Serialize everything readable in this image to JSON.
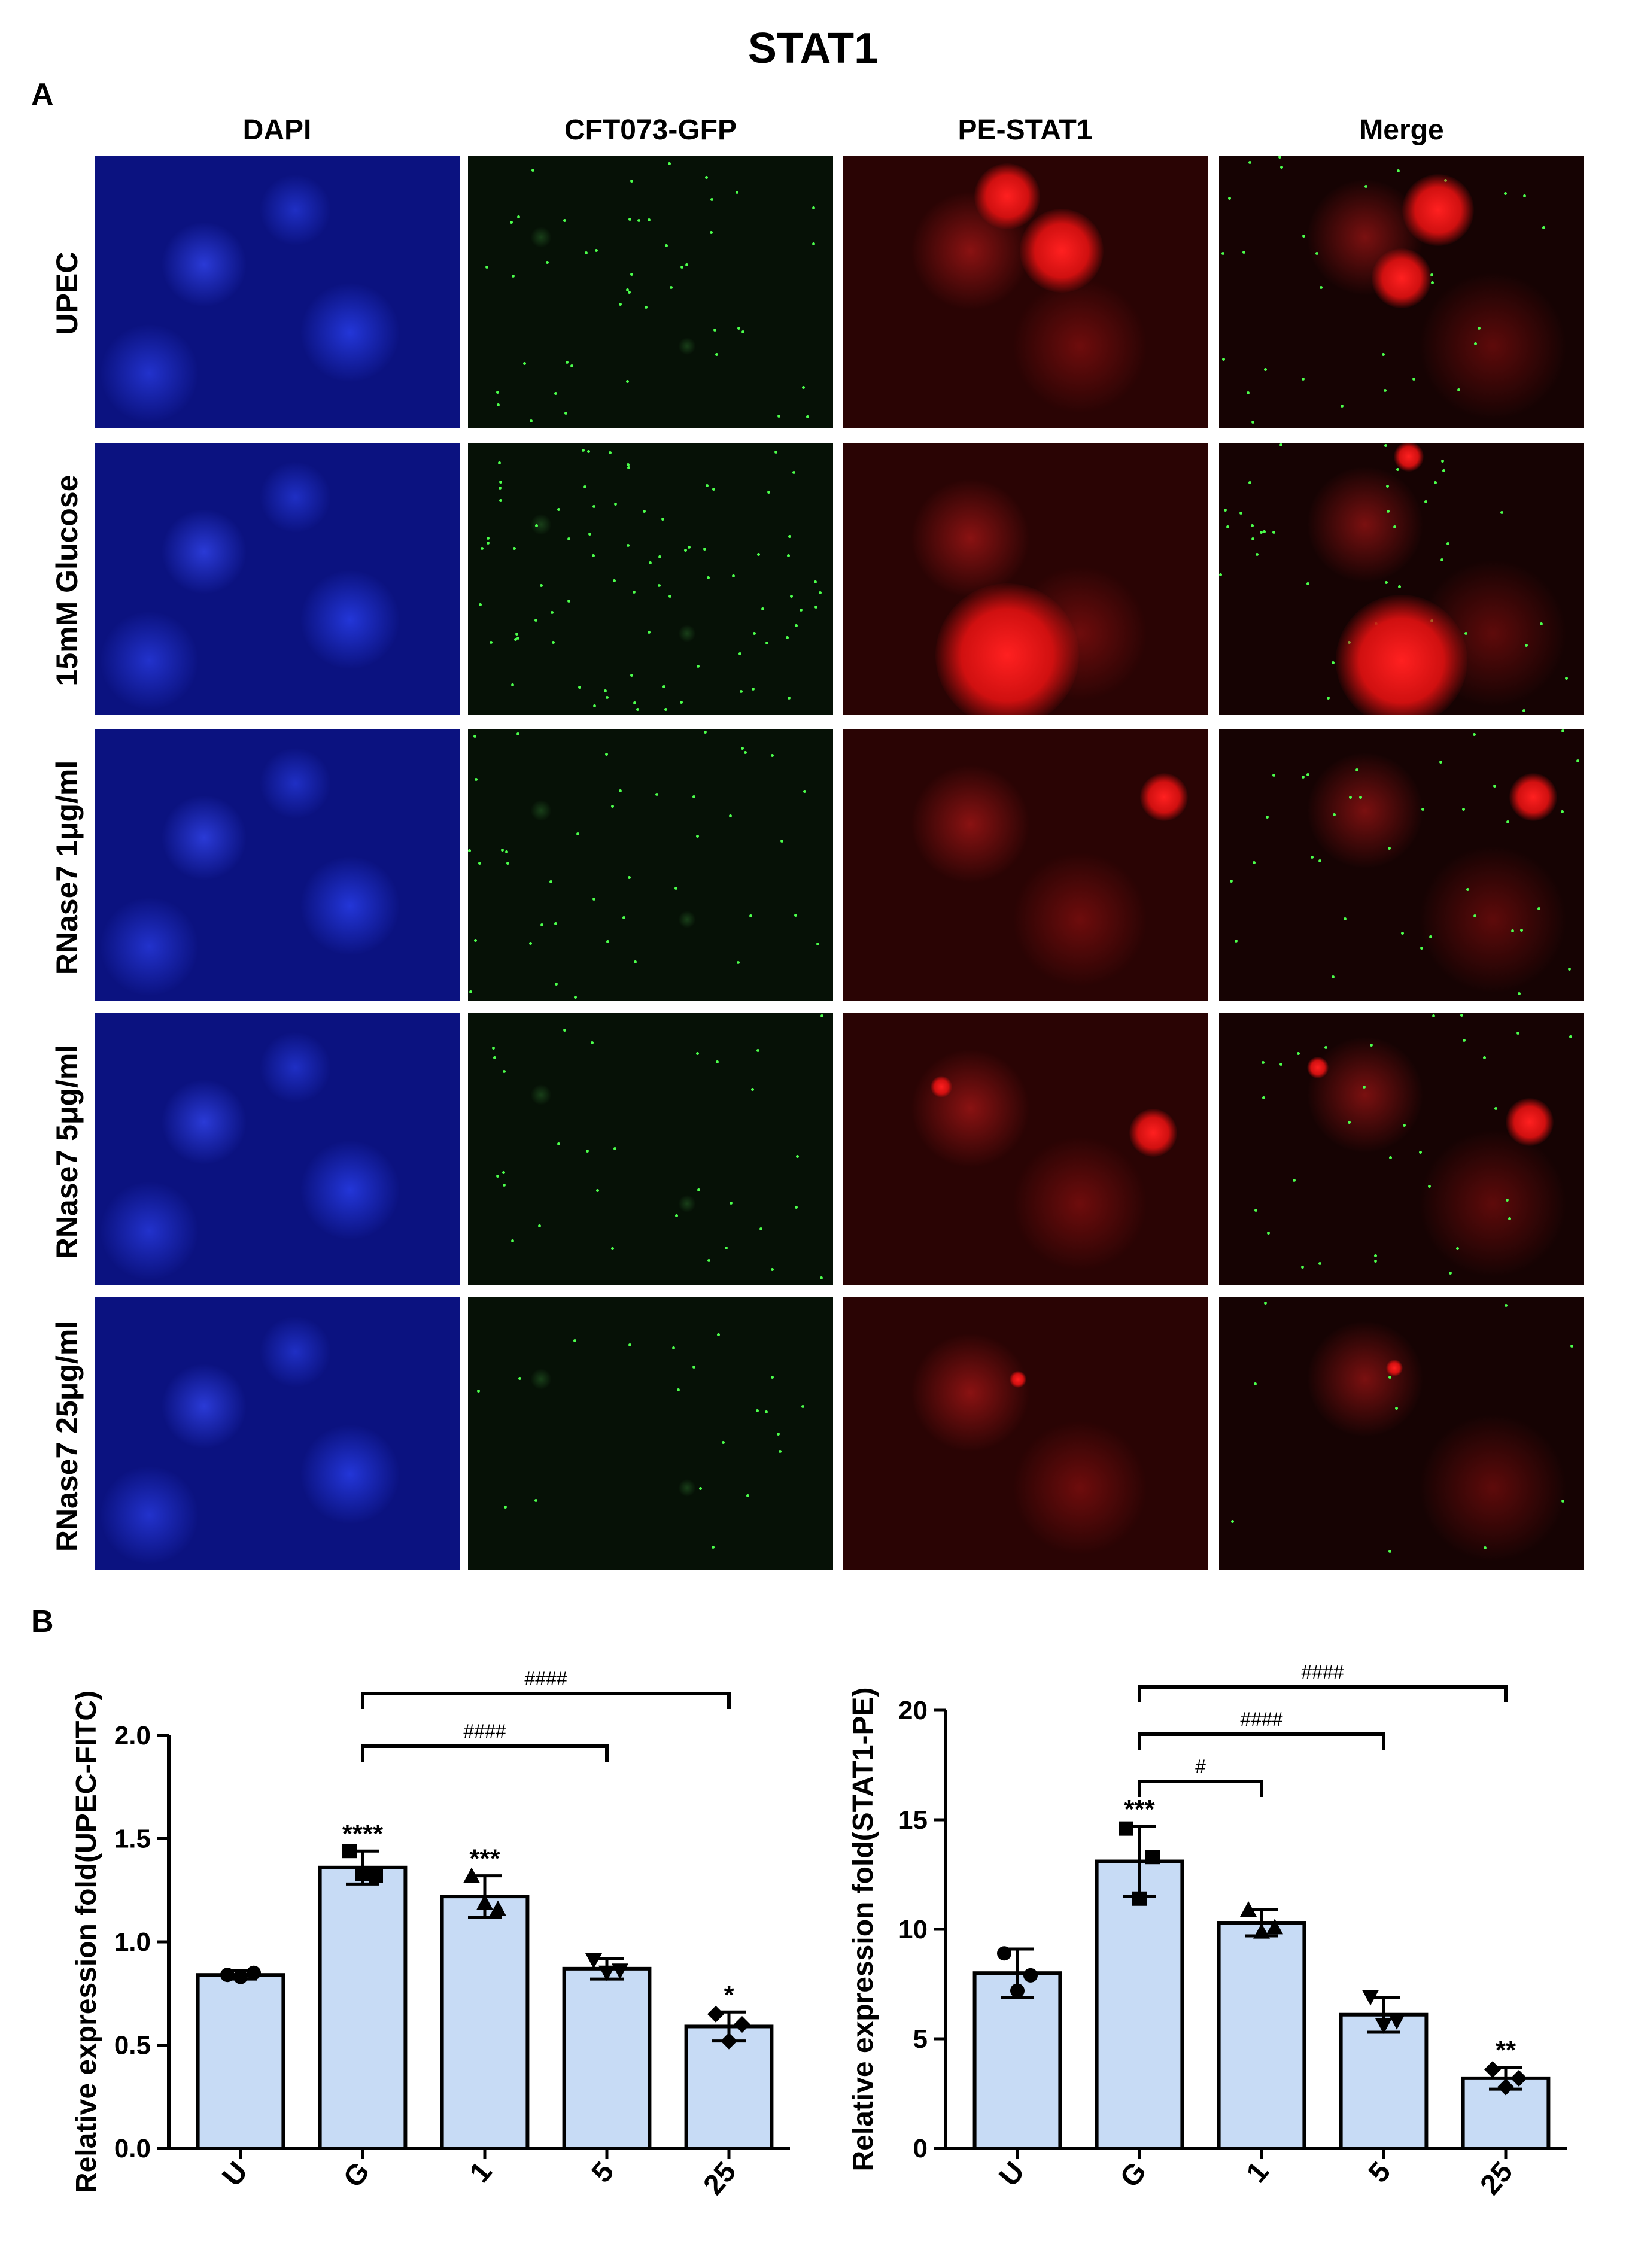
{
  "figure": {
    "title": "STAT1",
    "panel_a_label": "A",
    "panel_b_label": "B",
    "column_headers": [
      "DAPI",
      "CFT073-GFP",
      "PE-STAT1",
      "Merge"
    ],
    "row_labels": [
      "UPEC",
      "15mM Glucose",
      "RNase7 1μg/ml",
      "RNase7  5μg/ml",
      "RNase7 25μg/ml"
    ]
  },
  "chart_data": [
    {
      "type": "bar",
      "categories": [
        "U",
        "G",
        "1",
        "5",
        "25"
      ],
      "values": [
        0.84,
        1.36,
        1.22,
        0.87,
        0.59
      ],
      "errors": [
        0.02,
        0.08,
        0.1,
        0.05,
        0.07
      ],
      "points": [
        [
          0.84,
          0.83,
          0.85
        ],
        [
          1.44,
          1.33,
          1.32
        ],
        [
          1.32,
          1.19,
          1.16
        ],
        [
          0.91,
          0.85,
          0.86
        ],
        [
          0.65,
          0.52,
          0.6
        ]
      ],
      "ylabel": "Relative expression fold(UPEC-FITC)",
      "ylim": [
        0.0,
        2.0
      ],
      "yticks": [
        "0.0",
        "0.5",
        "1.0",
        "1.5",
        "2.0"
      ],
      "bar_color": "#c7dbf5",
      "significance_above_bars": [
        "",
        "****",
        "***",
        "",
        "*"
      ],
      "brackets": [
        {
          "from": "G",
          "to": "5",
          "label": "####"
        },
        {
          "from": "G",
          "to": "25",
          "label": "####"
        }
      ]
    },
    {
      "type": "bar",
      "categories": [
        "U",
        "G",
        "1",
        "5",
        "25"
      ],
      "values": [
        8.0,
        13.1,
        10.3,
        6.1,
        3.2
      ],
      "errors": [
        1.1,
        1.6,
        0.6,
        0.8,
        0.5
      ],
      "points": [
        [
          8.9,
          7.2,
          7.9
        ],
        [
          14.6,
          11.4,
          13.3
        ],
        [
          10.9,
          9.9,
          10.1
        ],
        [
          6.9,
          5.6,
          5.8
        ],
        [
          3.6,
          2.8,
          3.2
        ]
      ],
      "ylabel": "Relative expression fold(STAT1-PE)",
      "ylim": [
        0,
        20
      ],
      "yticks": [
        "0",
        "5",
        "10",
        "15",
        "20"
      ],
      "bar_color": "#c7dbf5",
      "significance_above_bars": [
        "",
        "***",
        "",
        "",
        "**"
      ],
      "brackets": [
        {
          "from": "G",
          "to": "1",
          "label": "#"
        },
        {
          "from": "G",
          "to": "5",
          "label": "####"
        },
        {
          "from": "G",
          "to": "25",
          "label": "####"
        }
      ]
    }
  ]
}
